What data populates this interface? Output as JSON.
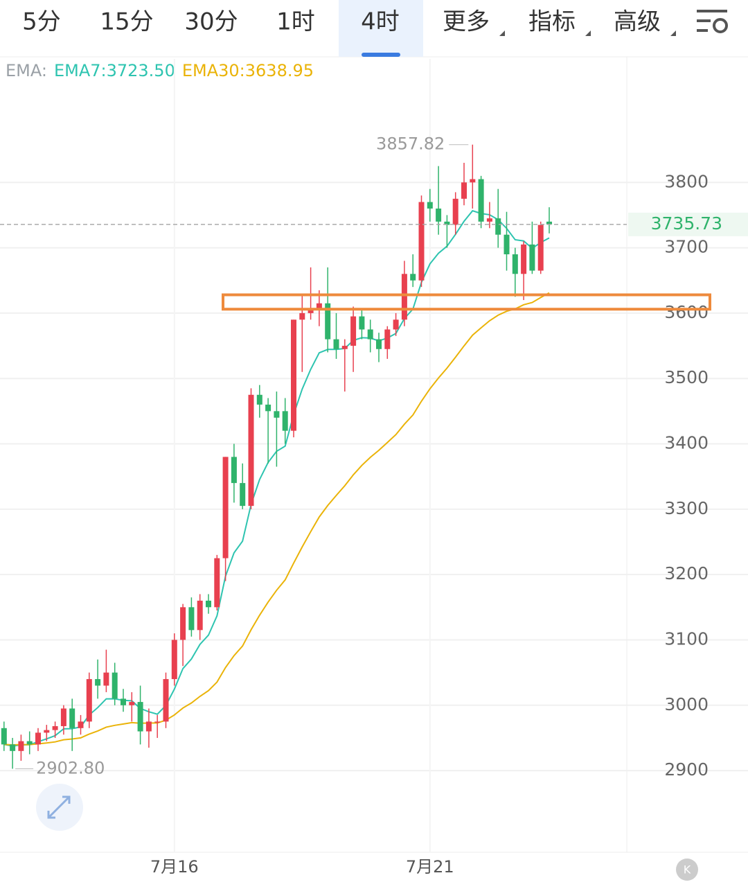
{
  "tabs": [
    "5分",
    "15分",
    "30分",
    "1时",
    "4时",
    "更多",
    "指标",
    "高级"
  ],
  "active_tab": 4,
  "chart_data": {
    "type": "candlestick",
    "legend": [
      "EMA:",
      "EMA7:3723.50",
      "EMA30:3638.95"
    ],
    "legend_colors": [
      "#9aa0a6",
      "#2ec4b0",
      "#eab308"
    ],
    "ema_periods": [
      7,
      30
    ],
    "up_color": "#e8404f",
    "down_color": "#2fb36b",
    "categories": [
      null,
      null,
      null,
      null,
      null,
      null,
      null,
      null,
      null,
      null,
      null,
      null,
      null,
      null,
      null,
      null,
      null,
      null,
      null,
      null,
      "7月16",
      null,
      null,
      null,
      null,
      null,
      null,
      null,
      null,
      null,
      null,
      null,
      null,
      null,
      null,
      null,
      null,
      null,
      null,
      null,
      null,
      null,
      null,
      null,
      null,
      null,
      null,
      null,
      null,
      null,
      "7月21",
      null,
      null,
      null,
      null,
      null,
      null,
      null,
      null,
      null,
      null,
      null,
      null,
      null,
      null
    ],
    "open": [
      2965,
      2940,
      2930,
      2945,
      2940,
      2958,
      2962,
      2968,
      2995,
      2965,
      2975,
      3040,
      3030,
      3050,
      3010,
      3000,
      3005,
      2960,
      2975,
      2975,
      3040,
      3100,
      3150,
      3115,
      3160,
      3150,
      3225,
      3380,
      3340,
      3305,
      3475,
      3460,
      3450,
      3450,
      3420,
      3590,
      3600,
      3605,
      3615,
      3560,
      3545,
      3550,
      3595,
      3575,
      3560,
      3545,
      3575,
      3590,
      3660,
      3650,
      3770,
      3760,
      3740,
      3735,
      3775,
      3800,
      3805,
      3740,
      3745,
      3720,
      3690,
      3660,
      3705,
      3665,
      3740
    ],
    "high": [
      2975,
      2950,
      2955,
      2960,
      2965,
      2970,
      2975,
      3000,
      3010,
      2985,
      3050,
      3070,
      3085,
      3065,
      3025,
      3020,
      3030,
      2995,
      2985,
      3050,
      3110,
      3155,
      3165,
      3170,
      3170,
      3230,
      3380,
      3400,
      3370,
      3485,
      3490,
      3470,
      3480,
      3470,
      3590,
      3630,
      3670,
      3635,
      3670,
      3600,
      3560,
      3610,
      3605,
      3590,
      3570,
      3580,
      3600,
      3680,
      3690,
      3780,
      3790,
      3825,
      3750,
      3785,
      3830,
      3857.82,
      3810,
      3770,
      3790,
      3755,
      3700,
      3710,
      3740,
      3740,
      3762
    ],
    "low": [
      2930,
      2902.8,
      2915,
      2925,
      2930,
      2945,
      2950,
      2955,
      2930,
      2955,
      2965,
      3010,
      3020,
      3000,
      2990,
      2975,
      2940,
      2935,
      2950,
      2965,
      3030,
      3060,
      3105,
      3100,
      3140,
      3145,
      3190,
      3310,
      3300,
      3300,
      3440,
      3370,
      3365,
      3400,
      3410,
      3510,
      3590,
      3580,
      3540,
      3530,
      3480,
      3510,
      3560,
      3540,
      3525,
      3530,
      3565,
      3580,
      3640,
      3640,
      3740,
      3720,
      3700,
      3720,
      3765,
      3760,
      3730,
      3730,
      3700,
      3665,
      3625,
      3620,
      3660,
      3660,
      3722
    ],
    "close": [
      2940,
      2930,
      2945,
      2940,
      2958,
      2962,
      2968,
      2995,
      2965,
      2975,
      3040,
      3030,
      3050,
      3010,
      3000,
      3005,
      2960,
      2975,
      2975,
      3040,
      3100,
      3150,
      3115,
      3160,
      3150,
      3225,
      3380,
      3340,
      3305,
      3475,
      3460,
      3450,
      3440,
      3420,
      3590,
      3600,
      3605,
      3615,
      3560,
      3545,
      3550,
      3595,
      3575,
      3560,
      3545,
      3575,
      3590,
      3660,
      3650,
      3770,
      3760,
      3740,
      3735,
      3775,
      3800,
      3805,
      3740,
      3745,
      3720,
      3690,
      3660,
      3705,
      3665,
      3735,
      3735.73
    ],
    "high_label": 3857.82,
    "low_label": {
      "value": 2902.8,
      "label": "2902.80"
    },
    "last_price": 3735.73,
    "zone": [
      3606,
      3628
    ],
    "zone_color": "#ee8a3c",
    "ylim": [
      2775,
      3989
    ],
    "yticks": [
      2900,
      3000,
      3100,
      3200,
      3300,
      3400,
      3500,
      3600,
      3700,
      3800
    ],
    "grid": true
  }
}
